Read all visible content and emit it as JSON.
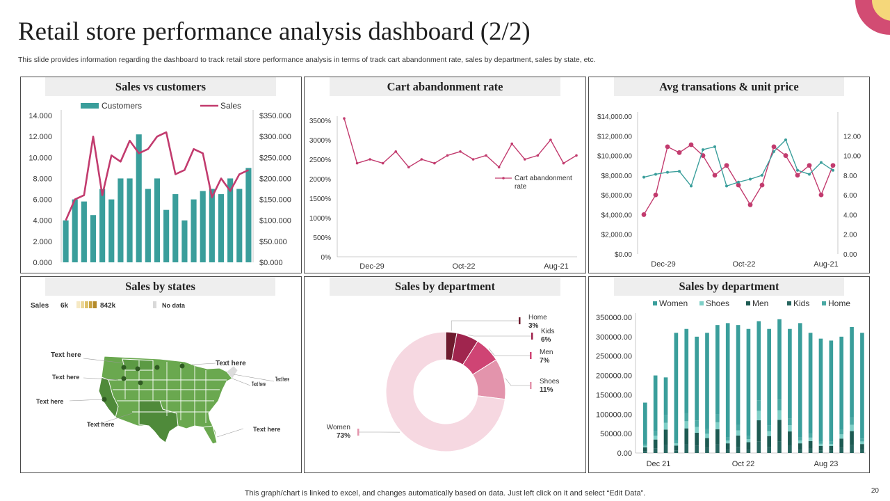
{
  "header": {
    "title": "Retail store performance analysis dashboard (2/2)",
    "subtitle": "This slide provides information regarding the dashboard to track retail store performance analysis in terms of track cart abandonment rate, sales by department, sales by state, etc."
  },
  "footer": {
    "note": "This graph/chart is linked to excel,  and changes automatically based on data. Just left click on it and select “Edit Data”.",
    "page": "20"
  },
  "colors": {
    "teal": "#3a9e9b",
    "magenta": "#c23b6e",
    "light_teal": "#7ecfc7",
    "dark_teal": "#1d5a52",
    "pink_light": "#f2d5de",
    "map_green": "#6aa84f"
  },
  "panels": {
    "sales_customers": {
      "title": "Sales vs customers"
    },
    "cart": {
      "title": "Cart abandonment rate"
    },
    "avg": {
      "title": "Avg transations & unit price"
    },
    "states": {
      "title": "Sales by states"
    },
    "dept_pie": {
      "title": "Sales by department"
    },
    "dept_bar": {
      "title": "Sales by department"
    }
  },
  "map": {
    "legend_label": "Sales",
    "min": "6k",
    "max": "842k",
    "no_data": "No data",
    "callouts": [
      "Text here",
      "Text here",
      "Text here",
      "Text here",
      "Text here",
      "Text here",
      "Text here",
      "Text here"
    ]
  },
  "chart_data": [
    {
      "id": "sales_customers",
      "type": "bar+line",
      "legend": [
        "Customers",
        "Sales"
      ],
      "y_left": {
        "ticks": [
          "0.000",
          "2.000",
          "4.000",
          "6.000",
          "8.000",
          "10.000",
          "12.000",
          "14.000"
        ],
        "range": [
          0,
          14
        ]
      },
      "y_right": {
        "ticks": [
          "$0.000",
          "$50.000",
          "$100.000",
          "$150.000",
          "$200.000",
          "$250.000",
          "$300.000",
          "$350.000"
        ],
        "range": [
          0,
          350
        ]
      },
      "series": [
        {
          "name": "Customers",
          "axis": "left",
          "values": [
            4,
            6,
            5.8,
            4.5,
            7,
            6,
            8,
            8,
            12.2,
            7,
            8,
            5,
            6.5,
            4,
            6,
            6.8,
            7,
            6.5,
            8,
            7,
            9
          ]
        },
        {
          "name": "Sales",
          "axis": "right",
          "values": [
            100,
            150,
            160,
            300,
            160,
            255,
            240,
            290,
            260,
            270,
            300,
            310,
            210,
            220,
            270,
            260,
            155,
            200,
            170,
            210,
            220
          ]
        }
      ]
    },
    {
      "id": "cart",
      "type": "line",
      "y_ticks": [
        "0%",
        "500%",
        "1000%",
        "1500%",
        "2000%",
        "2500%",
        "3000%",
        "3500%"
      ],
      "ylim": [
        0,
        3500
      ],
      "x_ticks": [
        "Dec-29",
        "Oct-22",
        "Aug-21"
      ],
      "legend": "Cart abandonment rate",
      "values": [
        3550,
        2400,
        2500,
        2400,
        2700,
        2300,
        2500,
        2400,
        2600,
        2700,
        2500,
        2600,
        2300,
        2900,
        2500,
        2600,
        3000,
        2400,
        2600
      ]
    },
    {
      "id": "avg",
      "type": "line",
      "y_left": {
        "ticks": [
          "$0.00",
          "$2,000.00",
          "$4,000.00",
          "$6,000.00",
          "$8,000.00",
          "$10,000.00",
          "$12,000.00",
          "$14,000.00"
        ],
        "range": [
          0,
          14000
        ]
      },
      "y_right": {
        "ticks": [
          "0.00",
          "2.00",
          "4.00",
          "6.00",
          "8.00",
          "10.00",
          "12.00"
        ],
        "range": [
          0,
          12
        ]
      },
      "x_ticks": [
        "Dec-29",
        "Oct-22",
        "Aug-21"
      ],
      "series": [
        {
          "axis": "right",
          "values": [
            4,
            6,
            10.9,
            10.3,
            11.1,
            10,
            8,
            9,
            7,
            5,
            7,
            10.9,
            10,
            8,
            9,
            6,
            9
          ]
        },
        {
          "axis": "right",
          "values": [
            7.8,
            8.1,
            8.3,
            8.4,
            6.9,
            10.6,
            10.9,
            6.9,
            7.3,
            7.6,
            8,
            10.4,
            11.6,
            8.5,
            8.1,
            9.3,
            8.5
          ]
        }
      ]
    },
    {
      "id": "dept_pie",
      "type": "pie",
      "labels": [
        "Home",
        "Kids",
        "Men",
        "Shoes",
        "Women"
      ],
      "percents": [
        "3%",
        "6%",
        "7%",
        "11%",
        "73%"
      ],
      "values": [
        3,
        6,
        7,
        11,
        73
      ],
      "colors": [
        "#6e1b2e",
        "#a0254e",
        "#cf4474",
        "#e394ac",
        "#f6d8e1"
      ]
    },
    {
      "id": "dept_bar",
      "type": "stacked-bar",
      "legend": [
        "Women",
        "Shoes",
        "Men",
        "Kids",
        "Home"
      ],
      "y_ticks": [
        "0.00",
        "50000.00",
        "100000.00",
        "150000.00",
        "200000.00",
        "250000.00",
        "300000.00",
        "350000.00"
      ],
      "ylim": [
        0,
        350000
      ],
      "x_ticks": [
        "Dec 21",
        "Oct 22",
        "Aug 23"
      ],
      "totals": [
        130000,
        200000,
        195000,
        310000,
        320000,
        300000,
        310000,
        330000,
        335000,
        330000,
        320000,
        340000,
        320000,
        345000,
        320000,
        335000,
        310000,
        295000,
        290000,
        300000,
        325000,
        310000
      ],
      "women_share": [
        0.82,
        0.72,
        0.5,
        0.9,
        0.68,
        0.72,
        0.8,
        0.7,
        0.88,
        0.78,
        0.86,
        0.6,
        0.78,
        0.6,
        0.72,
        0.88,
        0.84,
        0.9,
        0.9,
        0.8,
        0.72,
        0.88
      ]
    }
  ]
}
